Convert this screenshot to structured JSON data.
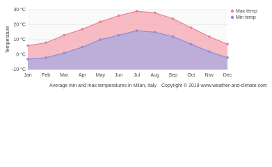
{
  "chart_data": {
    "type": "area",
    "y_label": "Temperature",
    "caption": "Average min and max temperatures in Milan, Italy",
    "copyright": "Copyright © 2019 www.weather-and-climate.com",
    "categories": [
      "Jan",
      "Feb",
      "Mar",
      "Apr",
      "May",
      "Jun",
      "Jul",
      "Aug",
      "Sep",
      "Oct",
      "Nov",
      "Dec"
    ],
    "series": [
      {
        "name": "Max temp",
        "color": "#e8848f",
        "values": [
          6,
          8,
          13,
          17,
          22,
          26,
          29,
          28,
          24,
          18,
          12,
          7
        ]
      },
      {
        "name": "Min temp",
        "color": "#8c8cd8",
        "values": [
          -3,
          -2,
          1,
          5,
          10,
          13,
          16,
          15,
          12,
          7,
          2,
          -2
        ]
      }
    ],
    "ylim": [
      -10,
      30
    ],
    "yticks": [
      {
        "value": -10,
        "label": "-10 °C"
      },
      {
        "value": 0,
        "label": "0 °C"
      },
      {
        "value": 10,
        "label": "10 °C"
      },
      {
        "value": 20,
        "label": "20 °C"
      },
      {
        "value": 30,
        "label": "30 °C"
      }
    ],
    "grid": true,
    "legend": "top-right"
  }
}
